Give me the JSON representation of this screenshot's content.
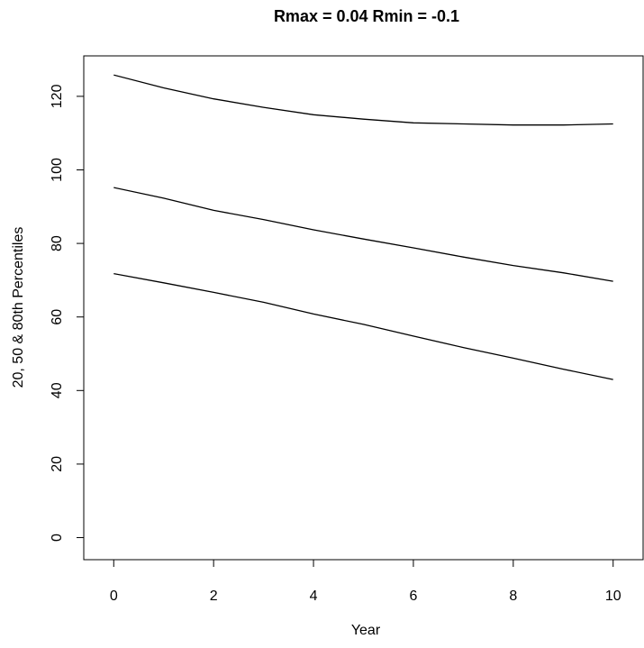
{
  "chart_data": {
    "type": "line",
    "title": "Rmax = 0.04 Rmin = -0.1",
    "xlabel": "Year",
    "ylabel": "20, 50 & 80th Percentiles",
    "xlim": [
      -0.6,
      10.6
    ],
    "ylim": [
      -6,
      131
    ],
    "x_ticks": [
      0,
      2,
      4,
      6,
      8,
      10
    ],
    "y_ticks": [
      0,
      20,
      40,
      60,
      80,
      100,
      120
    ],
    "grid": false,
    "legend": "none",
    "line_color": "#000000",
    "x": [
      0,
      1,
      2,
      3,
      4,
      5,
      6,
      7,
      8,
      9,
      10
    ],
    "series": [
      {
        "values": [
          125.8,
          122.3,
          119.3,
          117.0,
          115.0,
          113.8,
          112.8,
          112.5,
          112.2,
          112.2,
          112.5
        ]
      },
      {
        "values": [
          95.2,
          92.3,
          89.0,
          86.5,
          83.7,
          81.2,
          78.8,
          76.3,
          74.0,
          72.0,
          69.7
        ]
      },
      {
        "values": [
          71.8,
          69.3,
          66.7,
          64.0,
          60.8,
          58.0,
          54.8,
          51.7,
          48.8,
          45.8,
          43.0
        ]
      }
    ]
  }
}
